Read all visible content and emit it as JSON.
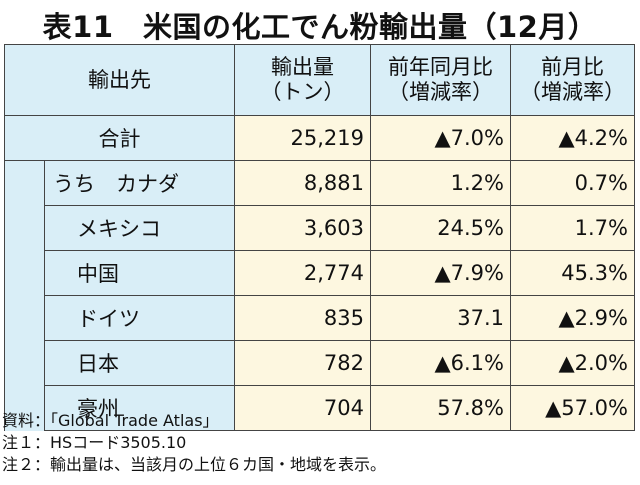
{
  "title": "表11　米国の化工でん粉輸出量（12月）",
  "header": {
    "destination": "輸出先",
    "volume": [
      "輸出量",
      "（トン）"
    ],
    "yoy": [
      "前年同月比",
      "（増減率）"
    ],
    "mom": [
      "前月比",
      "（増減率）"
    ]
  },
  "total": {
    "name": "合計",
    "volume": "25,219",
    "yoy": "▲7.0%",
    "mom": "▲4.2%"
  },
  "rows": [
    {
      "name": "うち　カナダ",
      "volume": "8,881",
      "yoy": "1.2%",
      "mom": "0.7%"
    },
    {
      "name": "メキシコ",
      "volume": "3,603",
      "yoy": "24.5%",
      "mom": "1.7%"
    },
    {
      "name": "中国",
      "volume": "2,774",
      "yoy": "▲7.9%",
      "mom": "45.3%"
    },
    {
      "name": "ドイツ",
      "volume": "835",
      "yoy": "37.1",
      "mom": "▲2.9%"
    },
    {
      "name": "日本",
      "volume": "782",
      "yoy": "▲6.1%",
      "mom": "▲2.0%"
    },
    {
      "name": "豪州",
      "volume": "704",
      "yoy": "57.8%",
      "mom": "▲57.0%"
    }
  ],
  "notes": [
    "資料：「Global Trade Atlas」",
    "注１：HSコード3505.10",
    "注２：輸出量は、当該月の上位６カ国・地域を表示。"
  ]
}
